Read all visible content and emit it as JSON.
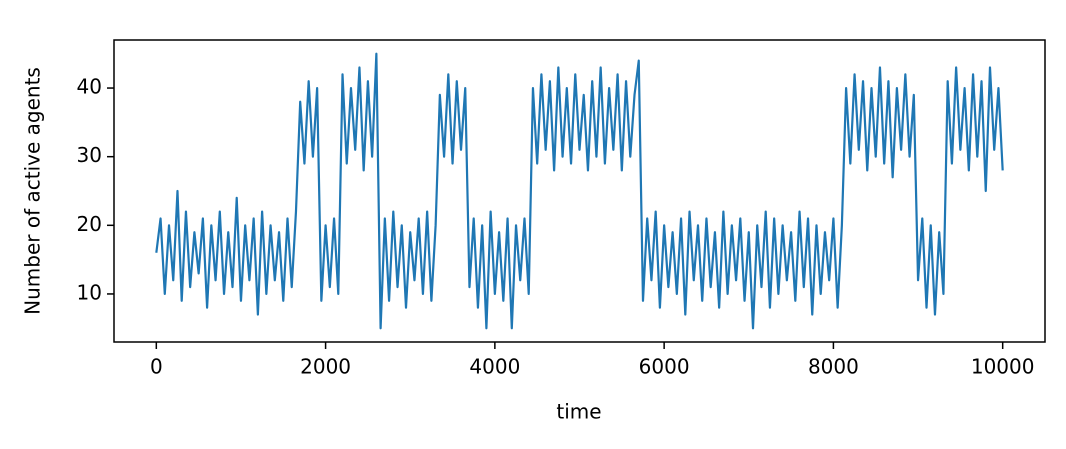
{
  "chart_data": {
    "type": "line",
    "xlabel": "time",
    "ylabel": "Number of active agents",
    "color": "#1f77b4",
    "xlim": [
      -500,
      10500
    ],
    "ylim": [
      3,
      47
    ],
    "xticks": [
      0,
      2000,
      4000,
      6000,
      8000,
      10000
    ],
    "yticks": [
      10,
      20,
      30,
      40
    ],
    "x": [
      0,
      50,
      100,
      150,
      200,
      250,
      300,
      350,
      400,
      450,
      500,
      550,
      600,
      650,
      700,
      750,
      800,
      850,
      900,
      950,
      1000,
      1050,
      1100,
      1150,
      1200,
      1250,
      1300,
      1350,
      1400,
      1450,
      1500,
      1550,
      1600,
      1650,
      1700,
      1750,
      1800,
      1850,
      1900,
      1950,
      2000,
      2050,
      2100,
      2150,
      2200,
      2250,
      2300,
      2350,
      2400,
      2450,
      2500,
      2550,
      2600,
      2650,
      2700,
      2750,
      2800,
      2850,
      2900,
      2950,
      3000,
      3050,
      3100,
      3150,
      3200,
      3250,
      3300,
      3350,
      3400,
      3450,
      3500,
      3550,
      3600,
      3650,
      3700,
      3750,
      3800,
      3850,
      3900,
      3950,
      4000,
      4050,
      4100,
      4150,
      4200,
      4250,
      4300,
      4350,
      4400,
      4450,
      4500,
      4550,
      4600,
      4650,
      4700,
      4750,
      4800,
      4850,
      4900,
      4950,
      5000,
      5050,
      5100,
      5150,
      5200,
      5250,
      5300,
      5350,
      5400,
      5450,
      5500,
      5550,
      5600,
      5650,
      5700,
      5750,
      5800,
      5850,
      5900,
      5950,
      6000,
      6050,
      6100,
      6150,
      6200,
      6250,
      6300,
      6350,
      6400,
      6450,
      6500,
      6550,
      6600,
      6650,
      6700,
      6750,
      6800,
      6850,
      6900,
      6950,
      7000,
      7050,
      7100,
      7150,
      7200,
      7250,
      7300,
      7350,
      7400,
      7450,
      7500,
      7550,
      7600,
      7650,
      7700,
      7750,
      7800,
      7850,
      7900,
      7950,
      8000,
      8050,
      8100,
      8150,
      8200,
      8250,
      8300,
      8350,
      8400,
      8450,
      8500,
      8550,
      8600,
      8650,
      8700,
      8750,
      8800,
      8850,
      8900,
      8950,
      9000,
      9050,
      9100,
      9150,
      9200,
      9250,
      9300,
      9350,
      9400,
      9450,
      9500,
      9550,
      9600,
      9650,
      9700,
      9750,
      9800,
      9850,
      9900,
      9950,
      10000
    ],
    "values": [
      16,
      21,
      10,
      20,
      12,
      25,
      9,
      22,
      11,
      19,
      13,
      21,
      8,
      20,
      12,
      22,
      10,
      19,
      11,
      24,
      9,
      20,
      12,
      21,
      7,
      22,
      10,
      20,
      12,
      19,
      9,
      21,
      11,
      22,
      38,
      29,
      41,
      30,
      40,
      9,
      20,
      11,
      21,
      10,
      42,
      29,
      40,
      31,
      43,
      28,
      41,
      30,
      45,
      5,
      21,
      9,
      22,
      11,
      20,
      8,
      19,
      12,
      21,
      10,
      22,
      9,
      20,
      39,
      30,
      42,
      29,
      41,
      31,
      40,
      11,
      21,
      8,
      20,
      5,
      22,
      10,
      19,
      9,
      21,
      5,
      20,
      12,
      21,
      10,
      40,
      29,
      42,
      31,
      41,
      28,
      43,
      30,
      40,
      29,
      42,
      31,
      39,
      28,
      41,
      30,
      43,
      29,
      40,
      31,
      42,
      28,
      41,
      30,
      39,
      44,
      9,
      21,
      12,
      22,
      8,
      20,
      11,
      19,
      10,
      21,
      7,
      22,
      12,
      20,
      9,
      21,
      11,
      19,
      8,
      22,
      10,
      20,
      12,
      21,
      9,
      19,
      5,
      20,
      11,
      22,
      8,
      21,
      10,
      20,
      12,
      19,
      9,
      22,
      11,
      21,
      7,
      20,
      10,
      19,
      12,
      21,
      8,
      20,
      40,
      29,
      42,
      31,
      41,
      28,
      40,
      30,
      43,
      29,
      41,
      27,
      40,
      31,
      42,
      30,
      39,
      12,
      21,
      8,
      20,
      7,
      19,
      10,
      41,
      29,
      43,
      31,
      40,
      28,
      42,
      30,
      41,
      25,
      43,
      31,
      40,
      28
    ]
  }
}
